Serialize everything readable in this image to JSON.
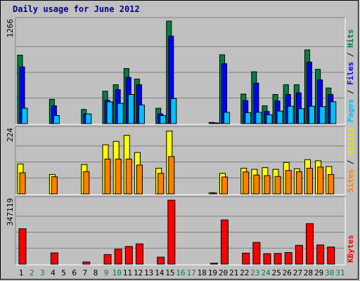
{
  "chart_data": {
    "type": "bar",
    "title": "Daily usage for June 2012",
    "categories": [
      "1",
      "2",
      "3",
      "4",
      "5",
      "6",
      "7",
      "8",
      "9",
      "10",
      "11",
      "12",
      "13",
      "14",
      "15",
      "16",
      "17",
      "18",
      "19",
      "20",
      "21",
      "22",
      "23",
      "24",
      "25",
      "26",
      "27",
      "28",
      "29",
      "30",
      "31"
    ],
    "weekend_days": [
      "2",
      "3",
      "9",
      "10",
      "16",
      "17",
      "23",
      "24",
      "30",
      "31"
    ],
    "panels": [
      {
        "ymax_label": "1266",
        "ymax": 1266,
        "right_labels": [
          "Pages",
          "Files",
          "Hits"
        ],
        "label_colors": [
          "#00c0ff",
          "#0000ff",
          "#008040"
        ],
        "series": [
          {
            "name": "Hits",
            "color": "#008040",
            "values": [
              845,
              0,
              0,
              300,
              0,
              0,
              175,
              0,
              400,
              480,
              680,
              550,
              0,
              190,
              1266,
              0,
              0,
              0,
              15,
              850,
              0,
              365,
              640,
              220,
              360,
              480,
              480,
              910,
              670,
              440,
              0
            ]
          },
          {
            "name": "Files",
            "color": "#0000ff",
            "values": [
              700,
              0,
              0,
              220,
              0,
              0,
              120,
              0,
              290,
              420,
              570,
              480,
              0,
              120,
              1080,
              0,
              0,
              0,
              10,
              740,
              0,
              285,
              500,
              150,
              280,
              360,
              380,
              760,
              540,
              360,
              0
            ]
          },
          {
            "name": "Pages",
            "color": "#00c0ff",
            "values": [
              190,
              0,
              0,
              100,
              0,
              0,
              120,
              0,
              270,
              250,
              360,
              230,
              0,
              100,
              310,
              0,
              0,
              0,
              5,
              140,
              0,
              135,
              140,
              110,
              155,
              215,
              185,
              215,
              210,
              270,
              0
            ]
          }
        ]
      },
      {
        "ymax_label": "224",
        "ymax": 224,
        "right_labels": [
          "Sites",
          "Visits"
        ],
        "label_colors": [
          "#ff8000",
          "#e8e800"
        ],
        "series": [
          {
            "name": "Visits",
            "color": "#ffff00",
            "values": [
              105,
              0,
              0,
              68,
              0,
              0,
              103,
              0,
              172,
              184,
              205,
              145,
              0,
              90,
              220,
              0,
              0,
              0,
              4,
              72,
              0,
              90,
              86,
              92,
              86,
              110,
              88,
              120,
              116,
              96,
              0
            ]
          },
          {
            "name": "Sites",
            "color": "#ff8000",
            "values": [
              74,
              0,
              0,
              60,
              0,
              0,
              78,
              0,
              122,
              122,
              122,
              101,
              0,
              72,
              131,
              0,
              0,
              0,
              3,
              59,
              0,
              77,
              66,
              64,
              61,
              82,
              78,
              90,
              94,
              68,
              0
            ]
          }
        ]
      },
      {
        "ymax_label": "347119",
        "ymax": 347119,
        "right_labels": [
          "KBytes"
        ],
        "label_colors": [
          "#ff0000"
        ],
        "series": [
          {
            "name": "KBytes",
            "color": "#ff0000",
            "values": [
              192000,
              0,
              0,
              61000,
              0,
              0,
              12000,
              0,
              52000,
              81000,
              96000,
              110000,
              0,
              38000,
              347119,
              0,
              0,
              0,
              5000,
              240000,
              0,
              60000,
              118000,
              57000,
              58000,
              63000,
              102000,
              220000,
              104000,
              93000,
              0
            ]
          }
        ]
      }
    ]
  }
}
